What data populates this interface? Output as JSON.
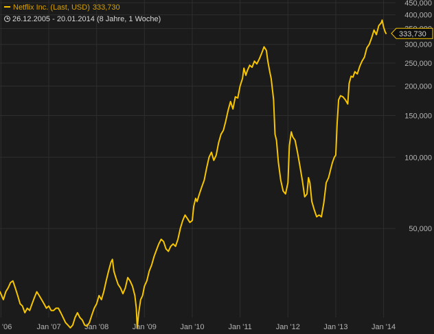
{
  "legend": {
    "series_name": "Netflix Inc. (Last, USD)",
    "last_value": "333,730",
    "range_text": "26.12.2005 - 20.01.2014 (8 Jahre, 1 Woche)"
  },
  "colors": {
    "background": "#1b1b1b",
    "line": "#f7c600",
    "grid": "#2e2e2e",
    "tick_text": "#b5b5b5",
    "callout_fill": "#0f0f0f"
  },
  "chart_data": {
    "type": "line",
    "title": "",
    "xlabel": "",
    "ylabel": "",
    "y_scale": "log",
    "grid": true,
    "last_value_label": "333,730",
    "x_ticks": [
      {
        "label": "'06",
        "year": 2006.0
      },
      {
        "label": "Jan '07",
        "year": 2007.0
      },
      {
        "label": "Jan '08",
        "year": 2008.0
      },
      {
        "label": "Jan '09",
        "year": 2009.0
      },
      {
        "label": "Jan '10",
        "year": 2010.0
      },
      {
        "label": "Jan '11",
        "year": 2011.0
      },
      {
        "label": "Jan '12",
        "year": 2012.0
      },
      {
        "label": "Jan '13",
        "year": 2013.0
      },
      {
        "label": "Jan '14",
        "year": 2014.0
      }
    ],
    "y_ticks": [
      {
        "label": "50,000",
        "value": 50
      },
      {
        "label": "100,000",
        "value": 100
      },
      {
        "label": "150,000",
        "value": 150
      },
      {
        "label": "200,000",
        "value": 200
      },
      {
        "label": "250,000",
        "value": 250
      },
      {
        "label": "300,000",
        "value": 300
      },
      {
        "label": "350,000",
        "value": 350
      },
      {
        "label": "400,000",
        "value": 400
      },
      {
        "label": "450,000",
        "value": 450
      }
    ],
    "xlim": [
      2005.98,
      2014.25
    ],
    "ylim": [
      21,
      450
    ],
    "series": [
      {
        "points": [
          [
            2005.98,
            27.0
          ],
          [
            2006.05,
            25.0
          ],
          [
            2006.1,
            27.0
          ],
          [
            2006.15,
            28.0
          ],
          [
            2006.2,
            29.5
          ],
          [
            2006.25,
            30.0
          ],
          [
            2006.3,
            28.0
          ],
          [
            2006.35,
            26.0
          ],
          [
            2006.4,
            24.0
          ],
          [
            2006.45,
            23.5
          ],
          [
            2006.5,
            22.0
          ],
          [
            2006.55,
            23.0
          ],
          [
            2006.6,
            22.5
          ],
          [
            2006.65,
            24.0
          ],
          [
            2006.7,
            25.5
          ],
          [
            2006.75,
            27.0
          ],
          [
            2006.8,
            26.0
          ],
          [
            2006.85,
            25.0
          ],
          [
            2006.9,
            24.0
          ],
          [
            2006.95,
            23.0
          ],
          [
            2007.0,
            23.5
          ],
          [
            2007.05,
            22.5
          ],
          [
            2007.1,
            22.5
          ],
          [
            2007.15,
            23.0
          ],
          [
            2007.2,
            23.0
          ],
          [
            2007.25,
            22.0
          ],
          [
            2007.3,
            21.0
          ],
          [
            2007.35,
            20.0
          ],
          [
            2007.4,
            19.5
          ],
          [
            2007.45,
            19.0
          ],
          [
            2007.5,
            19.5
          ],
          [
            2007.55,
            21.0
          ],
          [
            2007.6,
            22.0
          ],
          [
            2007.65,
            21.0
          ],
          [
            2007.7,
            20.5
          ],
          [
            2007.75,
            19.5
          ],
          [
            2007.8,
            19.3
          ],
          [
            2007.85,
            20.0
          ],
          [
            2007.9,
            21.5
          ],
          [
            2007.95,
            23.0
          ],
          [
            2008.0,
            24.0
          ],
          [
            2008.05,
            26.0
          ],
          [
            2008.1,
            25.0
          ],
          [
            2008.15,
            27.0
          ],
          [
            2008.2,
            30.0
          ],
          [
            2008.25,
            33.0
          ],
          [
            2008.3,
            36.0
          ],
          [
            2008.33,
            37.0
          ],
          [
            2008.36,
            33.0
          ],
          [
            2008.4,
            31.0
          ],
          [
            2008.45,
            29.0
          ],
          [
            2008.5,
            28.0
          ],
          [
            2008.55,
            26.5
          ],
          [
            2008.6,
            28.0
          ],
          [
            2008.65,
            31.0
          ],
          [
            2008.7,
            30.0
          ],
          [
            2008.75,
            28.5
          ],
          [
            2008.8,
            26.0
          ],
          [
            2008.83,
            23.0
          ],
          [
            2008.85,
            19.0
          ],
          [
            2008.88,
            22.0
          ],
          [
            2008.92,
            25.0
          ],
          [
            2008.96,
            26.0
          ],
          [
            2009.0,
            28.5
          ],
          [
            2009.05,
            30.0
          ],
          [
            2009.1,
            33.0
          ],
          [
            2009.15,
            35.0
          ],
          [
            2009.2,
            38.0
          ],
          [
            2009.25,
            40.5
          ],
          [
            2009.3,
            43.0
          ],
          [
            2009.35,
            45.0
          ],
          [
            2009.4,
            44.0
          ],
          [
            2009.45,
            41.0
          ],
          [
            2009.5,
            40.0
          ],
          [
            2009.55,
            42.0
          ],
          [
            2009.6,
            43.0
          ],
          [
            2009.65,
            42.0
          ],
          [
            2009.7,
            45.0
          ],
          [
            2009.75,
            50.0
          ],
          [
            2009.8,
            54.0
          ],
          [
            2009.85,
            57.0
          ],
          [
            2009.9,
            55.0
          ],
          [
            2009.95,
            53.0
          ],
          [
            2010.0,
            54.0
          ],
          [
            2010.03,
            62.0
          ],
          [
            2010.07,
            67.0
          ],
          [
            2010.1,
            65.0
          ],
          [
            2010.15,
            70.0
          ],
          [
            2010.2,
            75.0
          ],
          [
            2010.25,
            80.0
          ],
          [
            2010.3,
            90.0
          ],
          [
            2010.35,
            100.0
          ],
          [
            2010.4,
            105.0
          ],
          [
            2010.45,
            97.0
          ],
          [
            2010.5,
            102.0
          ],
          [
            2010.55,
            115.0
          ],
          [
            2010.6,
            125.0
          ],
          [
            2010.65,
            130.0
          ],
          [
            2010.7,
            142.0
          ],
          [
            2010.75,
            158.0
          ],
          [
            2010.8,
            172.0
          ],
          [
            2010.85,
            160.0
          ],
          [
            2010.9,
            180.0
          ],
          [
            2010.95,
            178.0
          ],
          [
            2011.0,
            200.0
          ],
          [
            2011.05,
            215.0
          ],
          [
            2011.08,
            238.0
          ],
          [
            2011.12,
            222.0
          ],
          [
            2011.15,
            232.0
          ],
          [
            2011.2,
            245.0
          ],
          [
            2011.25,
            240.0
          ],
          [
            2011.3,
            255.0
          ],
          [
            2011.35,
            248.0
          ],
          [
            2011.4,
            260.0
          ],
          [
            2011.45,
            275.0
          ],
          [
            2011.5,
            293.0
          ],
          [
            2011.55,
            283.0
          ],
          [
            2011.58,
            255.0
          ],
          [
            2011.62,
            230.0
          ],
          [
            2011.65,
            215.0
          ],
          [
            2011.7,
            175.0
          ],
          [
            2011.73,
            125.0
          ],
          [
            2011.76,
            118.0
          ],
          [
            2011.8,
            95.0
          ],
          [
            2011.85,
            80.0
          ],
          [
            2011.9,
            72.0
          ],
          [
            2011.95,
            70.0
          ],
          [
            2012.0,
            78.0
          ],
          [
            2012.03,
            112.0
          ],
          [
            2012.07,
            128.0
          ],
          [
            2012.1,
            122.0
          ],
          [
            2012.15,
            118.0
          ],
          [
            2012.2,
            105.0
          ],
          [
            2012.25,
            92.0
          ],
          [
            2012.3,
            80.0
          ],
          [
            2012.35,
            68.0
          ],
          [
            2012.4,
            70.0
          ],
          [
            2012.43,
            82.0
          ],
          [
            2012.46,
            78.0
          ],
          [
            2012.5,
            65.0
          ],
          [
            2012.55,
            60.0
          ],
          [
            2012.6,
            56.0
          ],
          [
            2012.65,
            57.0
          ],
          [
            2012.7,
            56.0
          ],
          [
            2012.75,
            64.0
          ],
          [
            2012.8,
            78.0
          ],
          [
            2012.85,
            82.0
          ],
          [
            2012.9,
            90.0
          ],
          [
            2012.93,
            95.0
          ],
          [
            2012.97,
            100.0
          ],
          [
            2013.0,
            102.0
          ],
          [
            2013.03,
            140.0
          ],
          [
            2013.06,
            175.0
          ],
          [
            2013.1,
            182.0
          ],
          [
            2013.15,
            180.0
          ],
          [
            2013.2,
            175.0
          ],
          [
            2013.25,
            168.0
          ],
          [
            2013.28,
            205.0
          ],
          [
            2013.32,
            220.0
          ],
          [
            2013.36,
            218.0
          ],
          [
            2013.4,
            230.0
          ],
          [
            2013.45,
            225.0
          ],
          [
            2013.5,
            242.0
          ],
          [
            2013.55,
            255.0
          ],
          [
            2013.6,
            265.0
          ],
          [
            2013.65,
            290.0
          ],
          [
            2013.7,
            300.0
          ],
          [
            2013.75,
            320.0
          ],
          [
            2013.8,
            345.0
          ],
          [
            2013.85,
            330.0
          ],
          [
            2013.9,
            360.0
          ],
          [
            2013.95,
            370.0
          ],
          [
            2013.97,
            380.0
          ],
          [
            2014.0,
            355.0
          ],
          [
            2014.03,
            340.0
          ],
          [
            2014.05,
            333.73
          ]
        ]
      }
    ]
  }
}
